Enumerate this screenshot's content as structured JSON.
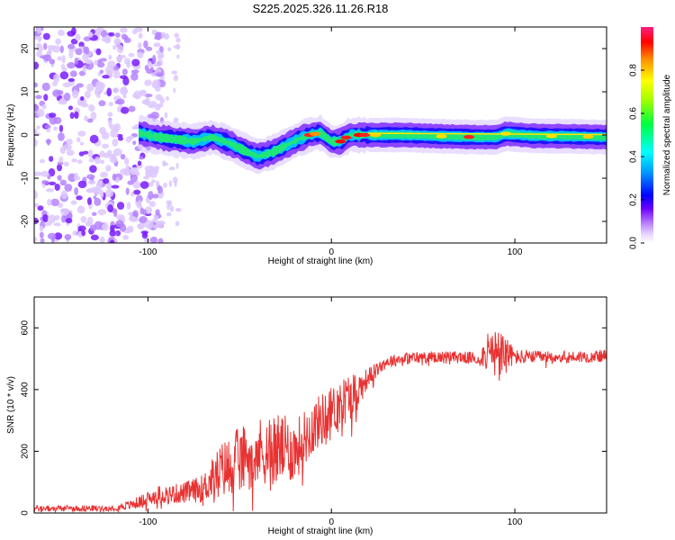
{
  "title": "S225.2025.326.11.26.R18",
  "chart_data": [
    {
      "type": "heatmap",
      "name": "spectrogram",
      "xlabel": "Height of straight line (km)",
      "ylabel": "Frequency (Hz)",
      "xlim": [
        -162,
        150
      ],
      "ylim": [
        -25,
        25
      ],
      "xticks": [
        -100,
        0,
        100
      ],
      "yticks": [
        -20,
        -10,
        0,
        10,
        20
      ],
      "colorbar": {
        "label": "Normalized spectral amplitude",
        "range": [
          0,
          1
        ],
        "ticks": [
          0.0,
          0.2,
          0.4,
          0.6,
          0.8
        ],
        "tick_labels": [
          "0.0",
          "0.2",
          "0.4",
          "0.6",
          "0.8"
        ]
      },
      "ridge": {
        "x": [
          -105,
          -95,
          -85,
          -75,
          -65,
          -55,
          -48,
          -40,
          -32,
          -25,
          -18,
          -12,
          -6,
          0,
          5,
          10,
          20,
          40,
          60,
          80,
          90,
          95,
          110,
          130,
          150
        ],
        "freq": [
          0.5,
          -0.5,
          -1,
          -1.5,
          -0.5,
          -2,
          -3.5,
          -5,
          -4,
          -2.5,
          -1,
          0,
          0.5,
          -1.5,
          -1.5,
          0,
          0,
          0,
          -0.3,
          -0.5,
          -0.5,
          0.3,
          -0.2,
          -0.3,
          -0.5
        ]
      }
    },
    {
      "type": "line",
      "name": "snr",
      "xlabel": "Height of straight line (km)",
      "ylabel": "SNR (10 * v/v)",
      "xlim": [
        -162,
        150
      ],
      "ylim": [
        0,
        700
      ],
      "xticks": [
        -100,
        0,
        100
      ],
      "xtick_labels": [
        "-100",
        "0",
        "100"
      ],
      "yticks": [
        0,
        200,
        400,
        600
      ],
      "ytick_labels": [
        "0",
        "200",
        "400",
        "600"
      ],
      "color": "#e83232",
      "series": [
        {
          "name": "SNR",
          "x": [
            -162,
            -140,
            -120,
            -110,
            -100,
            -95,
            -90,
            -80,
            -70,
            -60,
            -50,
            -40,
            -30,
            -20,
            -10,
            0,
            10,
            15,
            20,
            30,
            40,
            50,
            60,
            70,
            80,
            85,
            90,
            95,
            100,
            110,
            130,
            150
          ],
          "y": [
            15,
            15,
            16,
            25,
            45,
            60,
            60,
            65,
            80,
            140,
            170,
            200,
            210,
            200,
            280,
            330,
            380,
            400,
            440,
            490,
            500,
            505,
            505,
            505,
            500,
            520,
            510,
            520,
            505,
            505,
            505,
            510
          ],
          "noise_amp": [
            10,
            10,
            10,
            15,
            25,
            30,
            30,
            35,
            45,
            90,
            110,
            110,
            120,
            100,
            90,
            80,
            80,
            60,
            30,
            20,
            20,
            20,
            20,
            20,
            20,
            60,
            90,
            60,
            25,
            20,
            20,
            20
          ]
        }
      ]
    }
  ]
}
